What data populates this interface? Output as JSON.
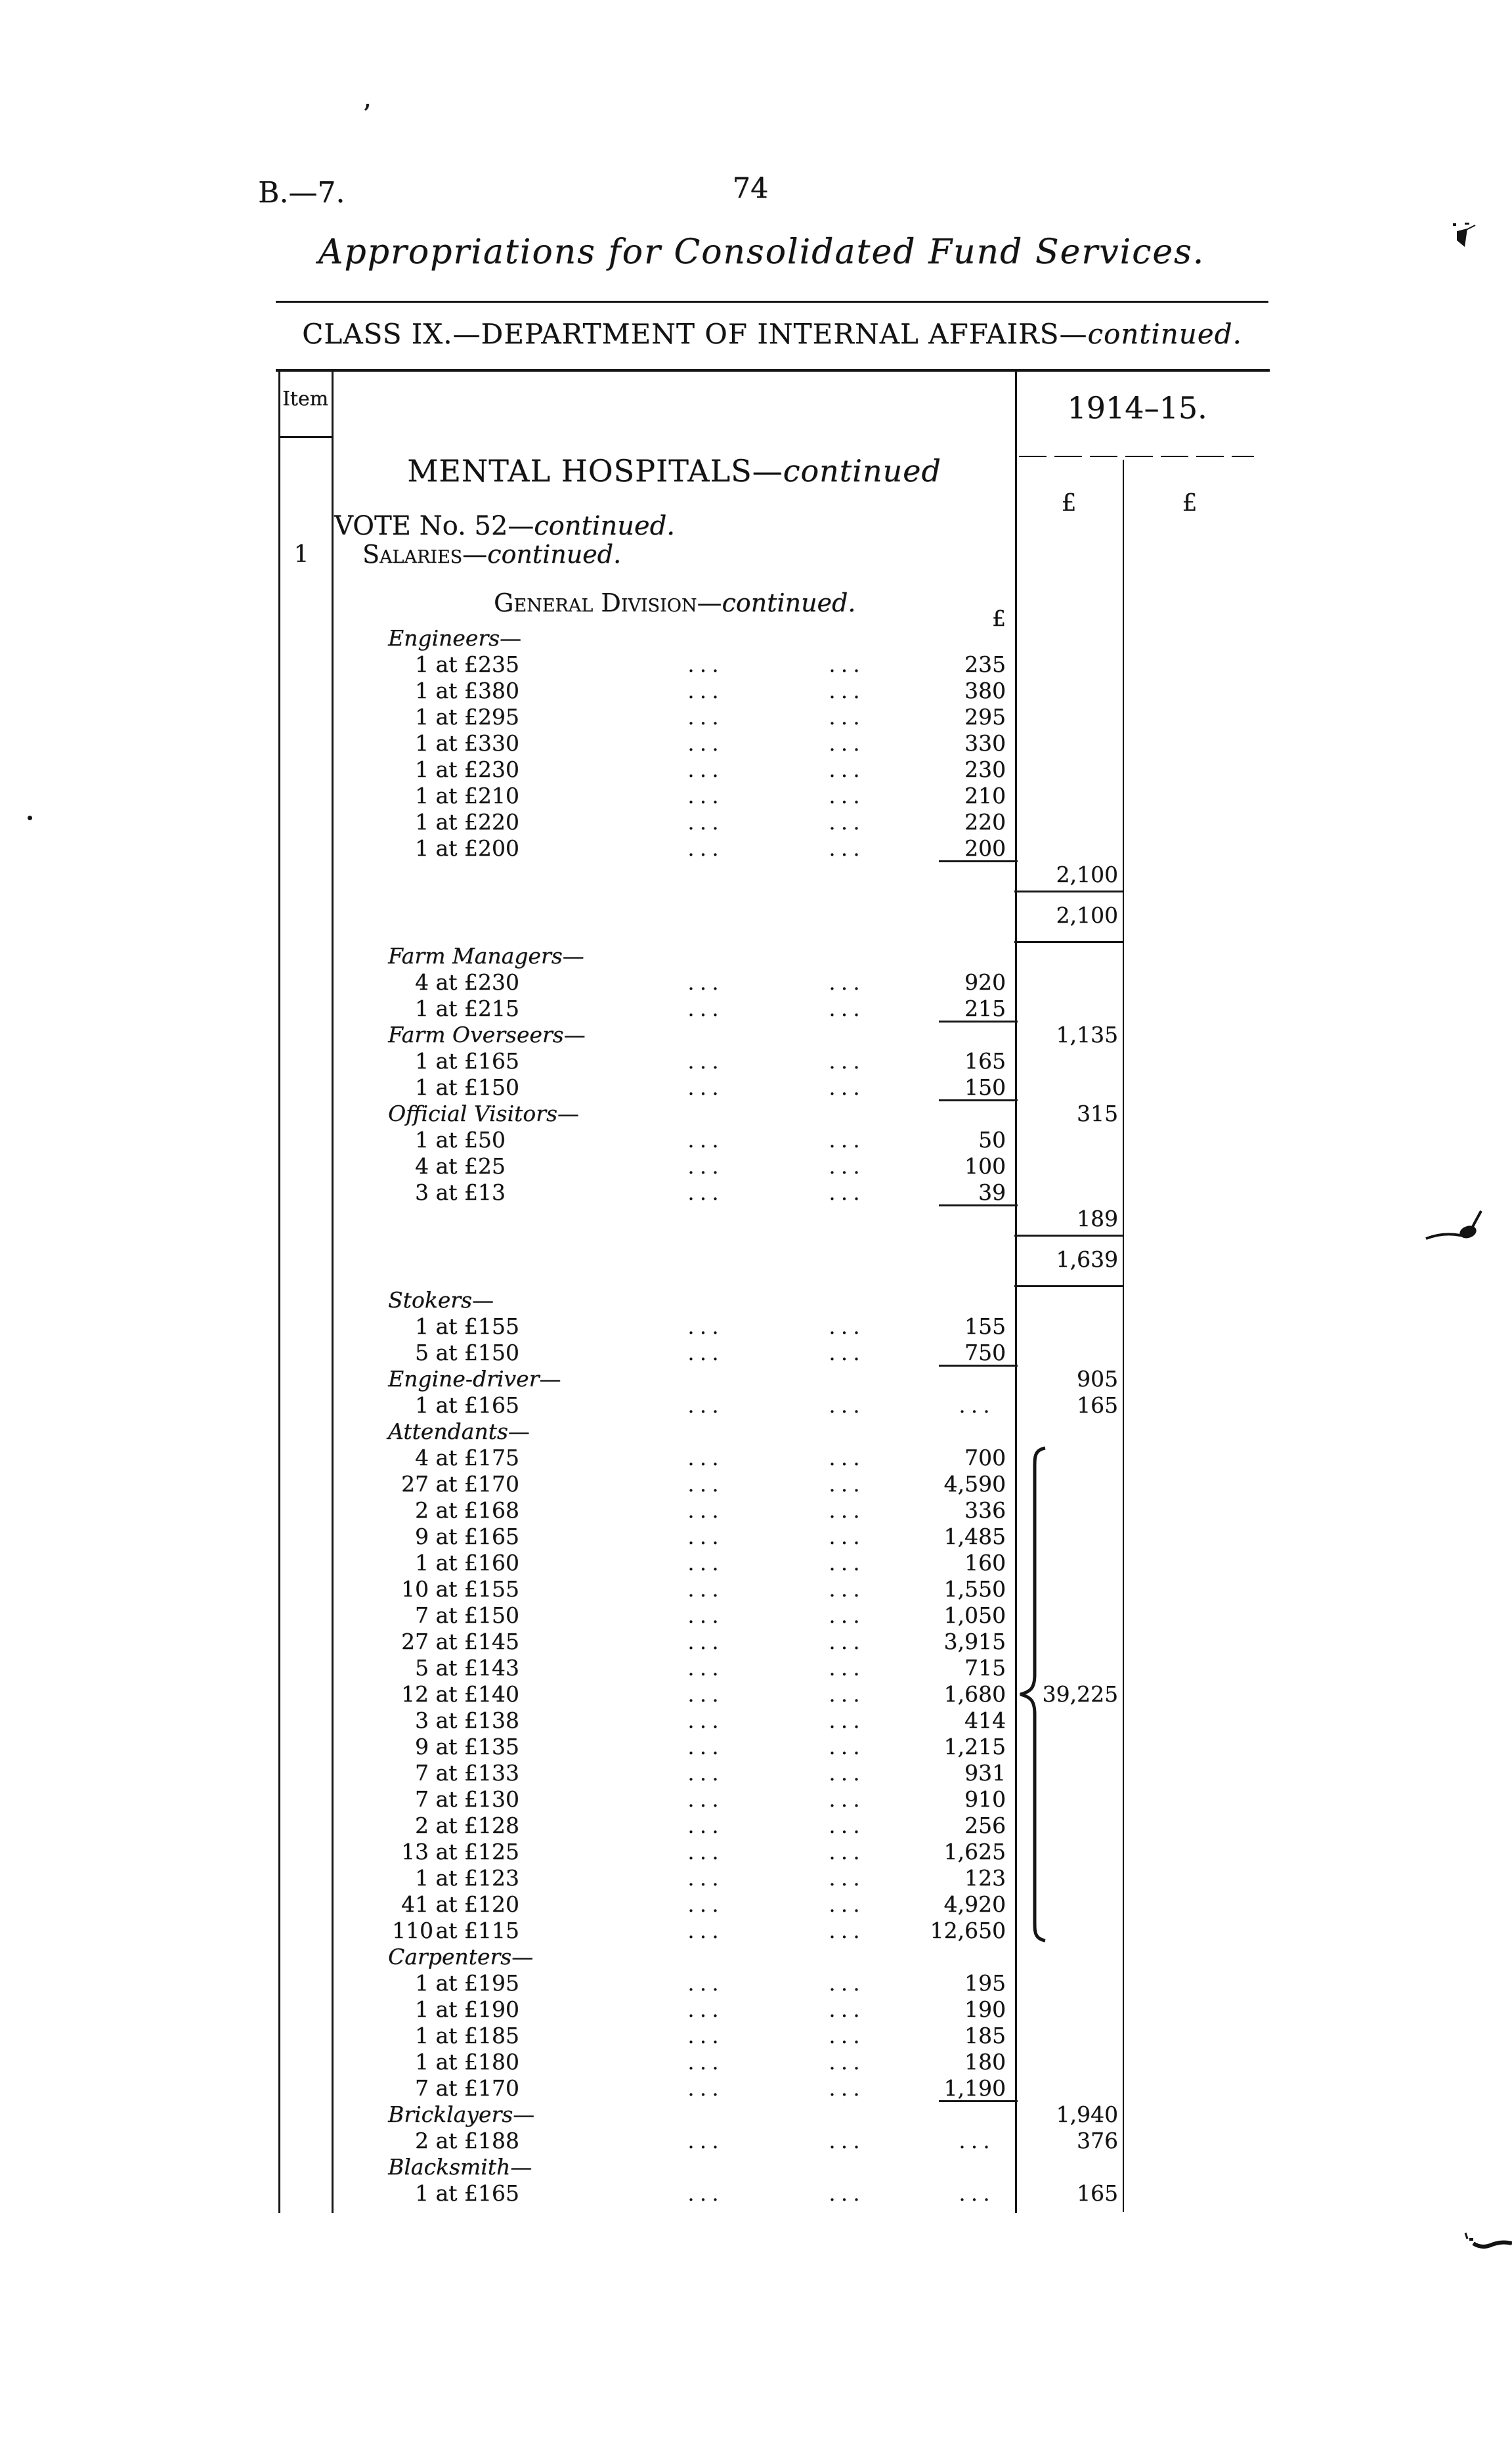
{
  "page": {
    "doc_ref": "B.—7.",
    "page_number": "74",
    "title": "Appropriations for Consolidated Fund Services.",
    "class_heading": "CLASS IX.—DEPARTMENT OF INTERNAL AFFAIRS—",
    "class_heading_cont": "continued.",
    "item_header": "Item",
    "item_number": "1",
    "year_header": "1914–15.",
    "pound_col1": "£",
    "pound_col2": "£",
    "body_pound": "£",
    "hospital_heading": "MENTAL HOSPITALS—",
    "hospital_heading_cont": "continued",
    "vote_heading": "VOTE No. 52—",
    "vote_heading_cont": "continued.",
    "salaries_heading": "Salaries—",
    "salaries_heading_cont": "continued.",
    "division_heading": "General Division—",
    "division_heading_cont": "continued."
  },
  "table": {
    "lines": [
      {
        "type": "group",
        "label": "Engineers—"
      },
      {
        "type": "entry",
        "label": "1 at £235",
        "dots": 2,
        "amount": "235"
      },
      {
        "type": "entry",
        "label": "1 at £380",
        "dots": 2,
        "amount": "380"
      },
      {
        "type": "entry",
        "label": "1 at £295",
        "dots": 2,
        "amount": "295"
      },
      {
        "type": "entry",
        "label": "1 at £330",
        "dots": 2,
        "amount": "330"
      },
      {
        "type": "entry",
        "label": "1 at £230",
        "dots": 2,
        "amount": "230"
      },
      {
        "type": "entry",
        "label": "1 at £210",
        "dots": 2,
        "amount": "210"
      },
      {
        "type": "entry",
        "label": "1 at £220",
        "dots": 2,
        "amount": "220"
      },
      {
        "type": "entry",
        "label": "1 at £200",
        "dots": 2,
        "amount": "200"
      },
      {
        "type": "money",
        "money1": "2,100",
        "amount_rule": true
      },
      {
        "type": "boxed",
        "money1": "2,100"
      },
      {
        "type": "group",
        "label": "Farm Managers—"
      },
      {
        "type": "entry",
        "label": "4 at £230",
        "dots": 2,
        "amount": "920"
      },
      {
        "type": "entry",
        "label": "1 at £215",
        "dots": 2,
        "amount": "215"
      },
      {
        "type": "group",
        "label": "Farm Overseers—",
        "money1": "1,135",
        "amount_rule": true
      },
      {
        "type": "entry",
        "label": "1 at £165",
        "dots": 2,
        "amount": "165"
      },
      {
        "type": "entry",
        "label": "1 at £150",
        "dots": 2,
        "amount": "150"
      },
      {
        "type": "group",
        "label": "Official Visitors—",
        "money1": "315",
        "amount_rule": true
      },
      {
        "type": "entry",
        "label": "1 at £50",
        "dots": 2,
        "amount": "50"
      },
      {
        "type": "entry",
        "label": "4 at £25",
        "dots": 2,
        "amount": "100"
      },
      {
        "type": "entry",
        "label": "3 at £13",
        "dots": 2,
        "amount": "39"
      },
      {
        "type": "money",
        "money1": "189",
        "amount_rule": true
      },
      {
        "type": "boxed",
        "money1": "1,639"
      },
      {
        "type": "group",
        "label": "Stokers—"
      },
      {
        "type": "entry",
        "label": "1 at £155",
        "dots": 2,
        "amount": "155"
      },
      {
        "type": "entry",
        "label": "5 at £150",
        "dots": 2,
        "amount": "750"
      },
      {
        "type": "group",
        "label": "Engine-driver—",
        "money1": "905",
        "amount_rule": true
      },
      {
        "type": "entry",
        "label": "1 at £165",
        "dots": 3,
        "money1": "165"
      },
      {
        "type": "group",
        "label": "Attendants—"
      },
      {
        "type": "entry",
        "label": "4 at £175",
        "dots": 2,
        "amount": "700",
        "brace": "start"
      },
      {
        "type": "entry",
        "label": "27 at £170",
        "dots": 2,
        "amount": "4,590"
      },
      {
        "type": "entry",
        "label": "2 at £168",
        "dots": 2,
        "amount": "336"
      },
      {
        "type": "entry",
        "label": "9 at £165",
        "dots": 2,
        "amount": "1,485"
      },
      {
        "type": "entry",
        "label": "1 at £160",
        "dots": 2,
        "amount": "160"
      },
      {
        "type": "entry",
        "label": "10 at £155",
        "dots": 2,
        "amount": "1,550"
      },
      {
        "type": "entry",
        "label": "7 at £150",
        "dots": 2,
        "amount": "1,050"
      },
      {
        "type": "entry",
        "label": "27 at £145",
        "dots": 2,
        "amount": "3,915"
      },
      {
        "type": "entry",
        "label": "5 at £143",
        "dots": 2,
        "amount": "715"
      },
      {
        "type": "entry",
        "label": "12 at £140",
        "dots": 2,
        "amount": "1,680",
        "money1": "39,225",
        "brace": "tip"
      },
      {
        "type": "entry",
        "label": "3 at £138",
        "dots": 2,
        "amount": "414"
      },
      {
        "type": "entry",
        "label": "9 at £135",
        "dots": 2,
        "amount": "1,215"
      },
      {
        "type": "entry",
        "label": "7 at £133",
        "dots": 2,
        "amount": "931"
      },
      {
        "type": "entry",
        "label": "7 at £130",
        "dots": 2,
        "amount": "910"
      },
      {
        "type": "entry",
        "label": "2 at £128",
        "dots": 2,
        "amount": "256"
      },
      {
        "type": "entry",
        "label": "13 at £125",
        "dots": 2,
        "amount": "1,625"
      },
      {
        "type": "entry",
        "label": "1 at £123",
        "dots": 2,
        "amount": "123"
      },
      {
        "type": "entry",
        "label": "41 at £120",
        "dots": 2,
        "amount": "4,920"
      },
      {
        "type": "entry",
        "label": "110 at £115",
        "dots": 2,
        "amount": "12,650",
        "brace": "end"
      },
      {
        "type": "group",
        "label": "Carpenters—"
      },
      {
        "type": "entry",
        "label": "1 at £195",
        "dots": 2,
        "amount": "195"
      },
      {
        "type": "entry",
        "label": "1 at £190",
        "dots": 2,
        "amount": "190"
      },
      {
        "type": "entry",
        "label": "1 at £185",
        "dots": 2,
        "amount": "185"
      },
      {
        "type": "entry",
        "label": "1 at £180",
        "dots": 2,
        "amount": "180"
      },
      {
        "type": "entry",
        "label": "7 at £170",
        "dots": 2,
        "amount": "1,190"
      },
      {
        "type": "group",
        "label": "Bricklayers—",
        "money1": "1,940",
        "amount_rule": true
      },
      {
        "type": "entry",
        "label": "2 at £188",
        "dots": 3,
        "money1": "376"
      },
      {
        "type": "group",
        "label": "Blacksmith—"
      },
      {
        "type": "entry",
        "label": "1 at £165",
        "dots": 3,
        "money1": "165"
      }
    ],
    "dots_glyph": "..."
  }
}
